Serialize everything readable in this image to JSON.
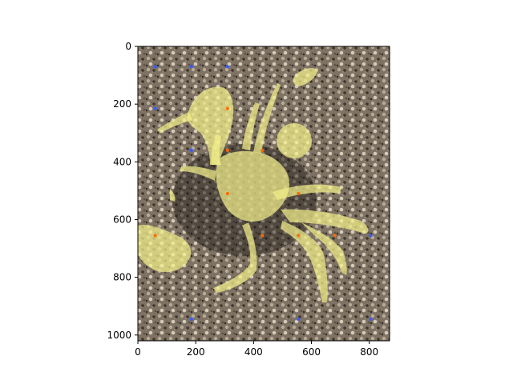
{
  "figure": {
    "background": "#ffffff",
    "image_description_icon": "crab-on-sand-photo",
    "mask_color": "#f2f08a",
    "positive_point_color": "#ff6a00",
    "negative_point_color": "#3a5bff"
  },
  "chart_data": {
    "type": "scatter",
    "title": "",
    "xlabel": "",
    "ylabel": "",
    "xlim": [
      0,
      870
    ],
    "ylim": [
      1020,
      0
    ],
    "x_ticks": [
      "0",
      "200",
      "400",
      "600",
      "800"
    ],
    "y_ticks": [
      "0",
      "200",
      "400",
      "600",
      "800",
      "1000"
    ],
    "grid": false,
    "legend": "none",
    "series": [
      {
        "values": [
          [
            310,
            215
          ],
          [
            310,
            360
          ],
          [
            430,
            360
          ],
          [
            310,
            510
          ],
          [
            555,
            510
          ],
          [
            60,
            655
          ],
          [
            430,
            655
          ],
          [
            555,
            655
          ],
          [
            680,
            655
          ]
        ]
      },
      {
        "values": [
          [
            60,
            70
          ],
          [
            185,
            70
          ],
          [
            310,
            70
          ],
          [
            60,
            215
          ],
          [
            185,
            360
          ],
          [
            805,
            655
          ],
          [
            185,
            945
          ],
          [
            555,
            945
          ],
          [
            805,
            945
          ]
        ]
      }
    ]
  }
}
